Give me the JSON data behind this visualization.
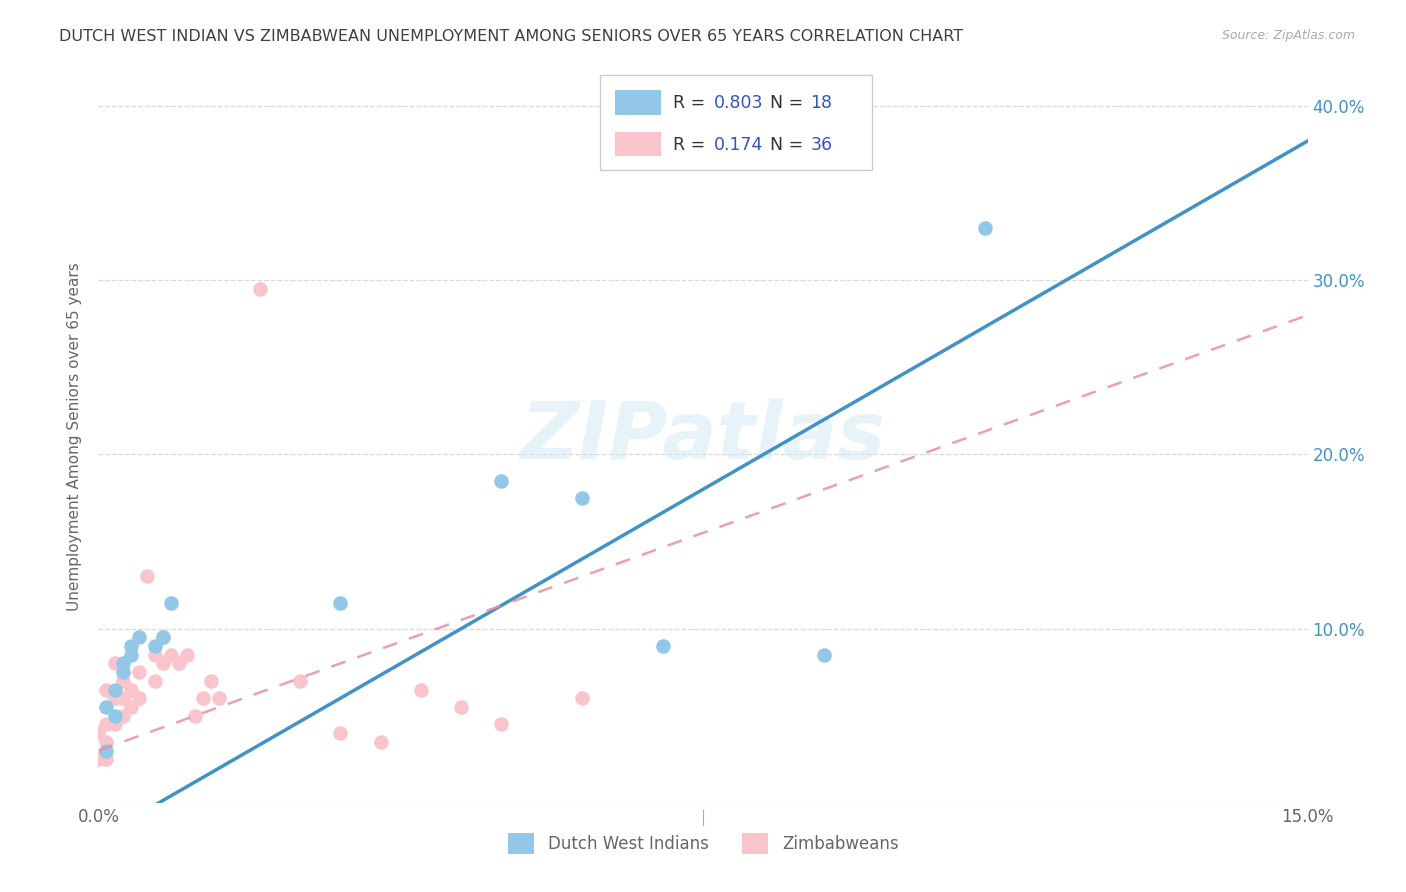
{
  "title": "DUTCH WEST INDIAN VS ZIMBABWEAN UNEMPLOYMENT AMONG SENIORS OVER 65 YEARS CORRELATION CHART",
  "source": "Source: ZipAtlas.com",
  "ylabel": "Unemployment Among Seniors over 65 years",
  "xlim": [
    0.0,
    0.15
  ],
  "ylim": [
    0.0,
    0.42
  ],
  "background_color": "#ffffff",
  "watermark": "ZIPatlas",
  "dutch_color": "#93c7e8",
  "zimbabwe_color": "#f9c4cb",
  "dutch_R": "0.803",
  "dutch_N": "18",
  "zimbabwe_R": "0.174",
  "zimbabwe_N": "36",
  "dutch_points_x": [
    0.001,
    0.001,
    0.002,
    0.002,
    0.003,
    0.003,
    0.004,
    0.004,
    0.005,
    0.007,
    0.008,
    0.009,
    0.03,
    0.05,
    0.06,
    0.07,
    0.09,
    0.11
  ],
  "dutch_points_y": [
    0.03,
    0.055,
    0.05,
    0.065,
    0.075,
    0.08,
    0.085,
    0.09,
    0.095,
    0.09,
    0.095,
    0.115,
    0.115,
    0.185,
    0.175,
    0.09,
    0.085,
    0.33
  ],
  "zimbabwe_points_x": [
    0.0,
    0.0,
    0.001,
    0.001,
    0.001,
    0.001,
    0.002,
    0.002,
    0.002,
    0.003,
    0.003,
    0.003,
    0.004,
    0.004,
    0.005,
    0.005,
    0.006,
    0.007,
    0.007,
    0.008,
    0.008,
    0.009,
    0.01,
    0.011,
    0.012,
    0.013,
    0.014,
    0.015,
    0.02,
    0.025,
    0.03,
    0.035,
    0.04,
    0.045,
    0.05,
    0.06
  ],
  "zimbabwe_points_y": [
    0.025,
    0.04,
    0.025,
    0.035,
    0.045,
    0.065,
    0.045,
    0.06,
    0.08,
    0.05,
    0.06,
    0.07,
    0.055,
    0.065,
    0.06,
    0.075,
    0.13,
    0.07,
    0.085,
    0.08,
    0.095,
    0.085,
    0.08,
    0.085,
    0.05,
    0.06,
    0.07,
    0.06,
    0.295,
    0.07,
    0.04,
    0.035,
    0.065,
    0.055,
    0.045,
    0.06
  ],
  "grid_color": "#d8d8d8",
  "line_dutch_color": "#4292c6",
  "line_zimbabwe_color": "#e88fa0",
  "title_color": "#404040",
  "legend_num_color": "#3355bb",
  "right_axis_color": "#4292c6",
  "ytick_positions": [
    0.0,
    0.1,
    0.2,
    0.3,
    0.4
  ],
  "ytick_labels": [
    "",
    "10.0%",
    "20.0%",
    "30.0%",
    "40.0%"
  ]
}
